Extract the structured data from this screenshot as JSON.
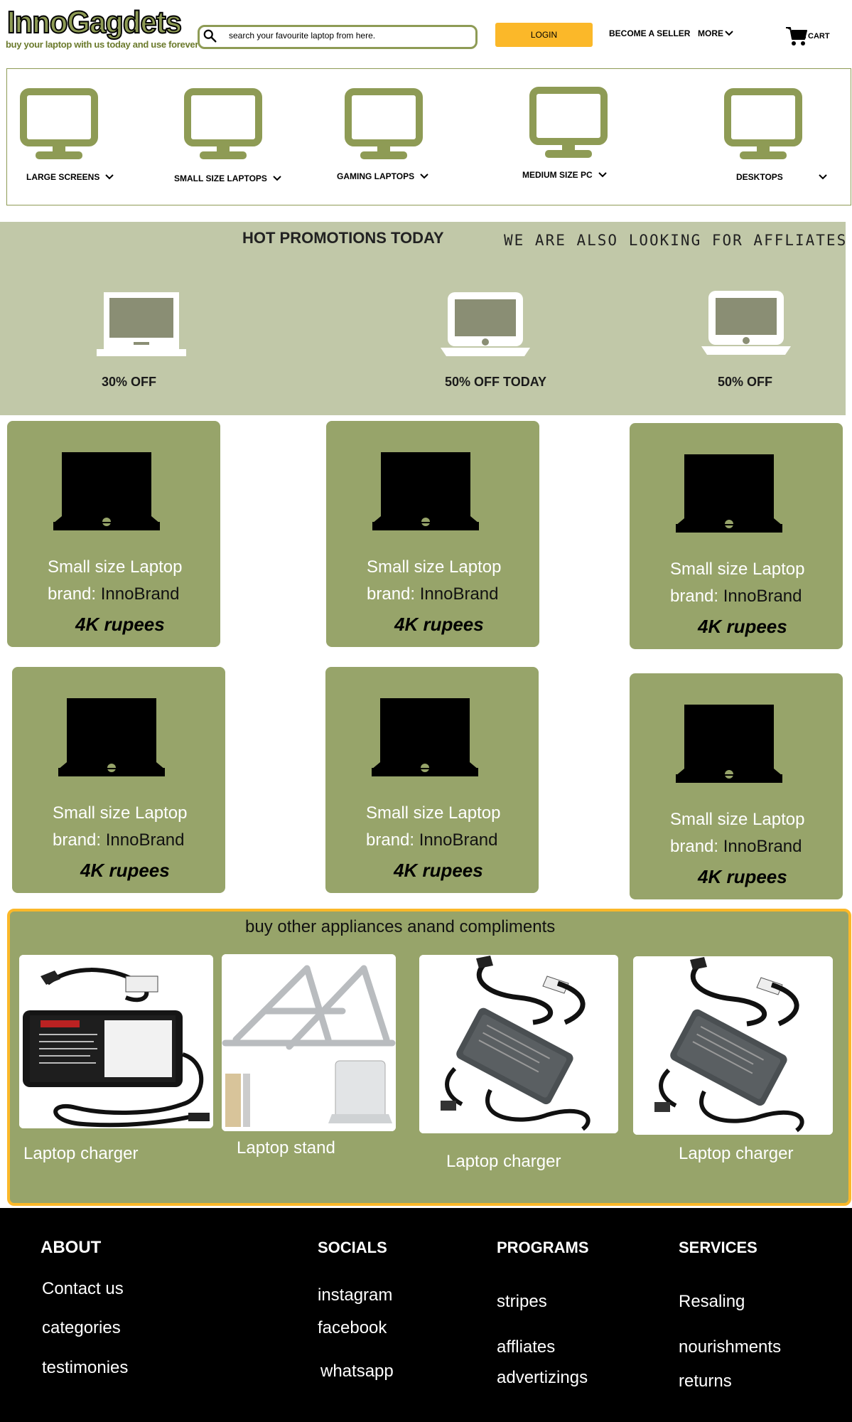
{
  "header": {
    "logo_title": "InnoGagdets",
    "logo_tagline": "buy your laptop with us  today and use forever",
    "search_placeholder": "search your favourite laptop from here.",
    "login_label": "LOGIN",
    "become_seller": "BECOME A SELLER",
    "more": "MORE",
    "cart": "CART"
  },
  "categories": [
    {
      "label": "LARGE SCREENS",
      "icon": "monitor-icon"
    },
    {
      "label": "SMALL SIZE LAPTOPS",
      "icon": "monitor-icon"
    },
    {
      "label": "GAMING LAPTOPS",
      "icon": "monitor-icon"
    },
    {
      "label": "MEDIUM  SIZE PC",
      "icon": "monitor-icon"
    },
    {
      "label": "DESKTOPS",
      "icon": "monitor-icon"
    }
  ],
  "promotions": {
    "title": "HOT PROMOTIONS  TODAY",
    "affiliates": "WE ARE ALSO LOOKING FOR AFFLIATES",
    "items": [
      {
        "label": "30% OFF"
      },
      {
        "label": "50% OFF TODAY"
      },
      {
        "label": "50% OFF"
      }
    ]
  },
  "products": [
    {
      "name": "Small size Laptop",
      "brand_prefix": "brand:",
      "brand": "InnoBrand",
      "price": "4K rupees"
    },
    {
      "name": "Small size Laptop",
      "brand_prefix": "brand:",
      "brand": "InnoBrand",
      "price": "4K rupees"
    },
    {
      "name": "Small size Laptop",
      "brand_prefix": "brand:",
      "brand": "InnoBrand",
      "price": "4K rupees"
    },
    {
      "name": "Small size Laptop",
      "brand_prefix": "brand:",
      "brand": "InnoBrand",
      "price": "4K rupees"
    },
    {
      "name": "Small size Laptop",
      "brand_prefix": "brand:",
      "brand": "InnoBrand",
      "price": "4K rupees"
    },
    {
      "name": "Small size Laptop",
      "brand_prefix": "brand:",
      "brand": "InnoBrand",
      "price": "4K rupees"
    }
  ],
  "appliances": {
    "title": "buy other appliances anand compliments",
    "items": [
      {
        "label": "Laptop charger"
      },
      {
        "label": "Laptop stand"
      },
      {
        "label": "Laptop charger"
      },
      {
        "label": "Laptop charger"
      }
    ]
  },
  "footer": {
    "about": {
      "heading": "ABOUT",
      "links": [
        "Contact us",
        "categories",
        "testimonies"
      ]
    },
    "socials": {
      "heading": "SOCIALS",
      "links": [
        "instagram",
        "facebook",
        "whatsapp"
      ]
    },
    "programs": {
      "heading": "PROGRAMS",
      "links": [
        "stripes",
        "affliates",
        "advertizings"
      ]
    },
    "services": {
      "heading": "SERVICES",
      "links": [
        "Resaling",
        "nourishments",
        "returns"
      ]
    }
  },
  "colors": {
    "accent": "#fbb829",
    "olive": "#97a46a",
    "promo_bg": "#c1c8a8",
    "footer_bg": "#000000"
  }
}
